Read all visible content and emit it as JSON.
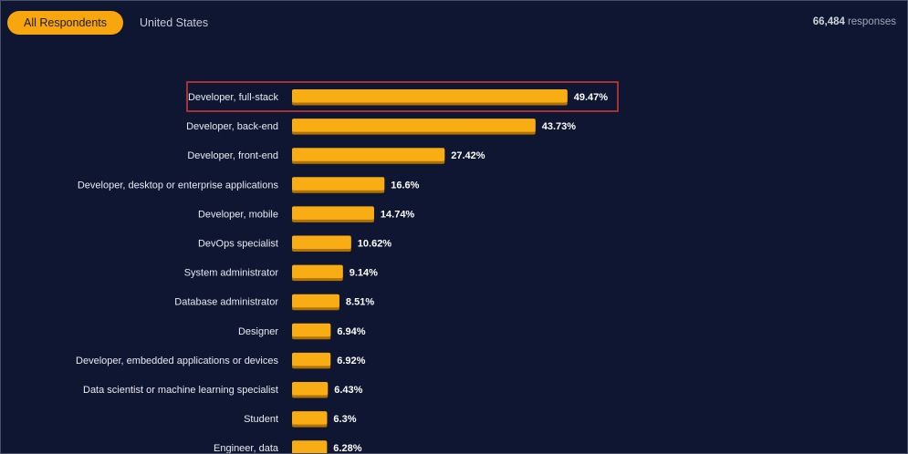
{
  "tabs": [
    {
      "label": "All Respondents",
      "active": true
    },
    {
      "label": "United States",
      "active": false
    }
  ],
  "responses": {
    "count": "66,484",
    "label": "responses"
  },
  "colors": {
    "background": "#0e1631",
    "bar": "#f9ad14",
    "active_tab": "#f7a60d",
    "highlight": "#d63a3a"
  },
  "highlighted_category": "Developer, full-stack",
  "chart_data": {
    "type": "bar",
    "orientation": "horizontal",
    "categories": [
      "Developer, full-stack",
      "Developer, back-end",
      "Developer, front-end",
      "Developer, desktop or enterprise applications",
      "Developer, mobile",
      "DevOps specialist",
      "System administrator",
      "Database administrator",
      "Designer",
      "Developer, embedded applications or devices",
      "Data scientist or machine learning specialist",
      "Student",
      "Engineer, data"
    ],
    "values": [
      49.47,
      43.73,
      27.42,
      16.6,
      14.74,
      10.62,
      9.14,
      8.51,
      6.94,
      6.92,
      6.43,
      6.3,
      6.28
    ],
    "value_labels": [
      "49.47%",
      "43.73%",
      "27.42%",
      "16.6%",
      "14.74%",
      "10.62%",
      "9.14%",
      "8.51%",
      "6.94%",
      "6.92%",
      "6.43%",
      "6.3%",
      "6.28%"
    ],
    "unit": "%",
    "title": "",
    "xlabel": "",
    "ylabel": ""
  }
}
